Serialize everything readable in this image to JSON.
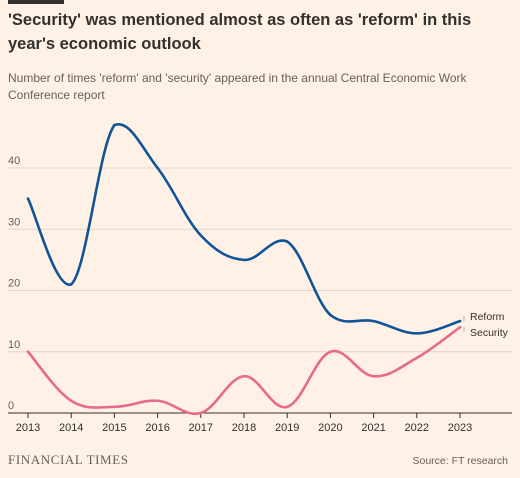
{
  "title": "'Security' was mentioned almost as often as 'reform' in this year's economic outlook",
  "subtitle": "Number of times 'reform' and 'security' appeared in the annual Central Economic Work Conference report",
  "footer": {
    "logo": "FINANCIAL TIMES",
    "source": "Source: FT research"
  },
  "colors": {
    "background": "#fff1e5",
    "reform": "#0f5499",
    "security": "#e66a8c",
    "grid": "#e3d6cc",
    "axis": "#33302e",
    "text": "#66605c"
  },
  "chart_data": {
    "type": "line",
    "title": "'Security' was mentioned almost as often as 'reform' in this year's economic outlook",
    "subtitle": "Number of times 'reform' and 'security' appeared in the annual Central Economic Work Conference report",
    "xlabel": "",
    "ylabel": "",
    "x": [
      2013,
      2014,
      2015,
      2016,
      2017,
      2018,
      2019,
      2020,
      2021,
      2022,
      2023
    ],
    "x_ticks": [
      "2013",
      "2014",
      "2015",
      "2016",
      "2017",
      "2018",
      "2019",
      "2020",
      "2021",
      "2022",
      "2023"
    ],
    "y_ticks": [
      "0",
      "10",
      "20",
      "30",
      "40"
    ],
    "ylim": [
      0,
      48
    ],
    "grid": true,
    "legend": "end-of-line labels",
    "series": [
      {
        "name": "Reform",
        "color": "#0f5499",
        "values": [
          35,
          21,
          47,
          40,
          29,
          25,
          28,
          16,
          15,
          13,
          15
        ]
      },
      {
        "name": "Security",
        "color": "#e66a8c",
        "values": [
          10,
          2,
          1,
          2,
          0,
          6,
          1,
          10,
          6,
          9,
          14
        ]
      }
    ]
  }
}
